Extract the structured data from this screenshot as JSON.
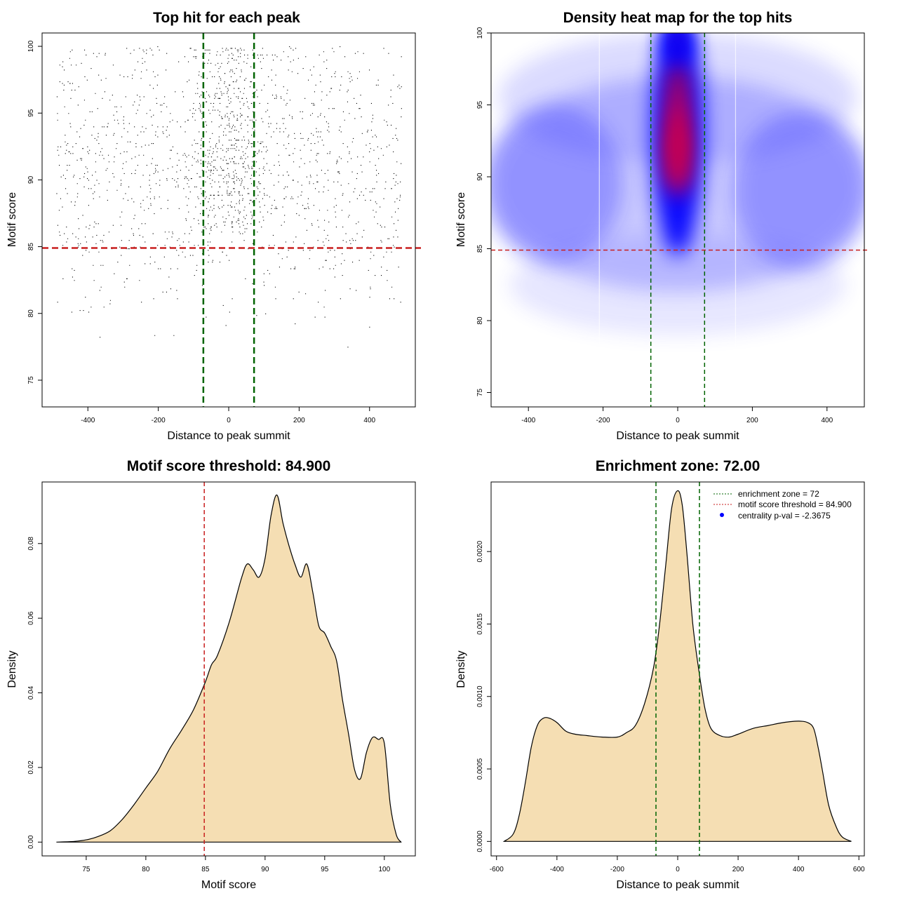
{
  "colors": {
    "fill": "#f5deb3",
    "enrichment_line": "#006400",
    "threshold_line": "#c81e1e",
    "point": "#000000",
    "legend_dot": "#0000ff"
  },
  "chart_data": [
    {
      "id": "scatter",
      "type": "scatter",
      "title": "Top hit for each peak",
      "xlabel": "Distance to peak summit",
      "ylabel": "Motif score",
      "xlim": [
        -530,
        530
      ],
      "ylim": [
        73,
        101
      ],
      "xticks": [
        -400,
        -200,
        0,
        200,
        400
      ],
      "yticks": [
        75,
        80,
        85,
        90,
        95,
        100
      ],
      "x_range": [
        -490,
        490
      ],
      "score_range": [
        74,
        100
      ],
      "vlines": [
        -72,
        72
      ],
      "hline": 84.9
    },
    {
      "id": "heatmap",
      "type": "heatmap",
      "title": "Density heat map for the top hits",
      "xlabel": "Distance to peak summit",
      "ylabel": "Motif score",
      "xlim": [
        -500,
        500
      ],
      "ylim": [
        74,
        100
      ],
      "xticks": [
        -400,
        -200,
        0,
        200,
        400
      ],
      "yticks": [
        75,
        80,
        85,
        90,
        95,
        100
      ],
      "vlines": [
        -72,
        72
      ],
      "hline": 84.9,
      "palette": [
        "#ffffff",
        "#0000ff",
        "#ff0000"
      ],
      "hotspots": [
        {
          "x": 0,
          "y": 93.2,
          "weight": 1.0
        },
        {
          "x": 0,
          "y": 91.0,
          "weight": 1.0
        },
        {
          "x": 0,
          "y": 99.5,
          "weight": 0.55
        },
        {
          "x": 0,
          "y": 96.0,
          "weight": 0.7
        }
      ]
    },
    {
      "id": "score_density",
      "type": "area",
      "title": "Motif score threshold: 84.900",
      "xlabel": "Motif score",
      "ylabel": "Density",
      "xlim": [
        71.3,
        102.6
      ],
      "ylim": [
        -0.0037,
        0.0965
      ],
      "xticks": [
        75,
        80,
        85,
        90,
        95,
        100
      ],
      "yticks": [
        0.0,
        0.02,
        0.04,
        0.06,
        0.08
      ],
      "ytick_labels": [
        "0.00",
        "0.02",
        "0.04",
        "0.06",
        "0.08"
      ],
      "vline": 84.9,
      "x": [
        72.5,
        74,
        75,
        76,
        77,
        78,
        79,
        80,
        81,
        82,
        83,
        84,
        85,
        85.5,
        86,
        87,
        88,
        88.5,
        89,
        89.5,
        90,
        90.5,
        91,
        91.5,
        92,
        92.5,
        93,
        93.5,
        94,
        94.5,
        95,
        95.5,
        96,
        96.5,
        97,
        97.5,
        98,
        98.5,
        99,
        99.5,
        100,
        100.5,
        101,
        101.4
      ],
      "y": [
        0.0,
        0.0002,
        0.0006,
        0.0015,
        0.003,
        0.006,
        0.01,
        0.0145,
        0.019,
        0.025,
        0.03,
        0.0355,
        0.043,
        0.0475,
        0.05,
        0.059,
        0.0705,
        0.0745,
        0.073,
        0.071,
        0.076,
        0.0875,
        0.093,
        0.0855,
        0.0795,
        0.0745,
        0.071,
        0.0745,
        0.067,
        0.058,
        0.056,
        0.0525,
        0.0485,
        0.038,
        0.029,
        0.0195,
        0.017,
        0.024,
        0.028,
        0.0275,
        0.0265,
        0.01,
        0.002,
        0.0
      ]
    },
    {
      "id": "distance_density",
      "type": "area",
      "title": "Enrichment zone: 72.00",
      "xlabel": "Distance to peak summit",
      "ylabel": "Density",
      "xlim": [
        -618,
        618
      ],
      "ylim": [
        -0.0001,
        0.00248
      ],
      "xticks": [
        -600,
        -400,
        -200,
        0,
        200,
        400,
        600
      ],
      "yticks": [
        0.0,
        0.0005,
        0.001,
        0.0015,
        0.002
      ],
      "ytick_labels": [
        "0.0000",
        "0.0005",
        "0.0010",
        "0.0015",
        "0.0020"
      ],
      "vlines": [
        -72,
        72
      ],
      "x": [
        -575,
        -545,
        -525,
        -505,
        -485,
        -465,
        -445,
        -425,
        -400,
        -370,
        -340,
        -300,
        -250,
        -200,
        -170,
        -140,
        -110,
        -80,
        -60,
        -40,
        -20,
        0,
        15,
        30,
        50,
        70,
        90,
        110,
        140,
        170,
        200,
        250,
        300,
        350,
        400,
        430,
        450,
        465,
        480,
        500,
        525,
        545,
        575
      ],
      "y": [
        0.0,
        5e-05,
        0.00018,
        0.0004,
        0.00065,
        0.0008,
        0.00085,
        0.00085,
        0.00082,
        0.00076,
        0.00074,
        0.00073,
        0.00072,
        0.00072,
        0.00075,
        0.0008,
        0.00095,
        0.0012,
        0.0015,
        0.0019,
        0.0023,
        0.00242,
        0.00232,
        0.002,
        0.0015,
        0.00118,
        0.00092,
        0.00078,
        0.00073,
        0.00072,
        0.00074,
        0.00078,
        0.0008,
        0.00082,
        0.00083,
        0.00082,
        0.00078,
        0.00065,
        0.00048,
        0.00025,
        0.0001,
        3e-05,
        0.0
      ]
    }
  ],
  "legend": {
    "items": [
      {
        "label": "enrichment zone = 72",
        "kind": "line",
        "color": "#006400"
      },
      {
        "label": "motif score threshold = 84.900",
        "kind": "line",
        "color": "#c81e1e"
      },
      {
        "label": "centrality p-val = -2.3675",
        "kind": "dot",
        "color": "#0000ff"
      }
    ]
  }
}
